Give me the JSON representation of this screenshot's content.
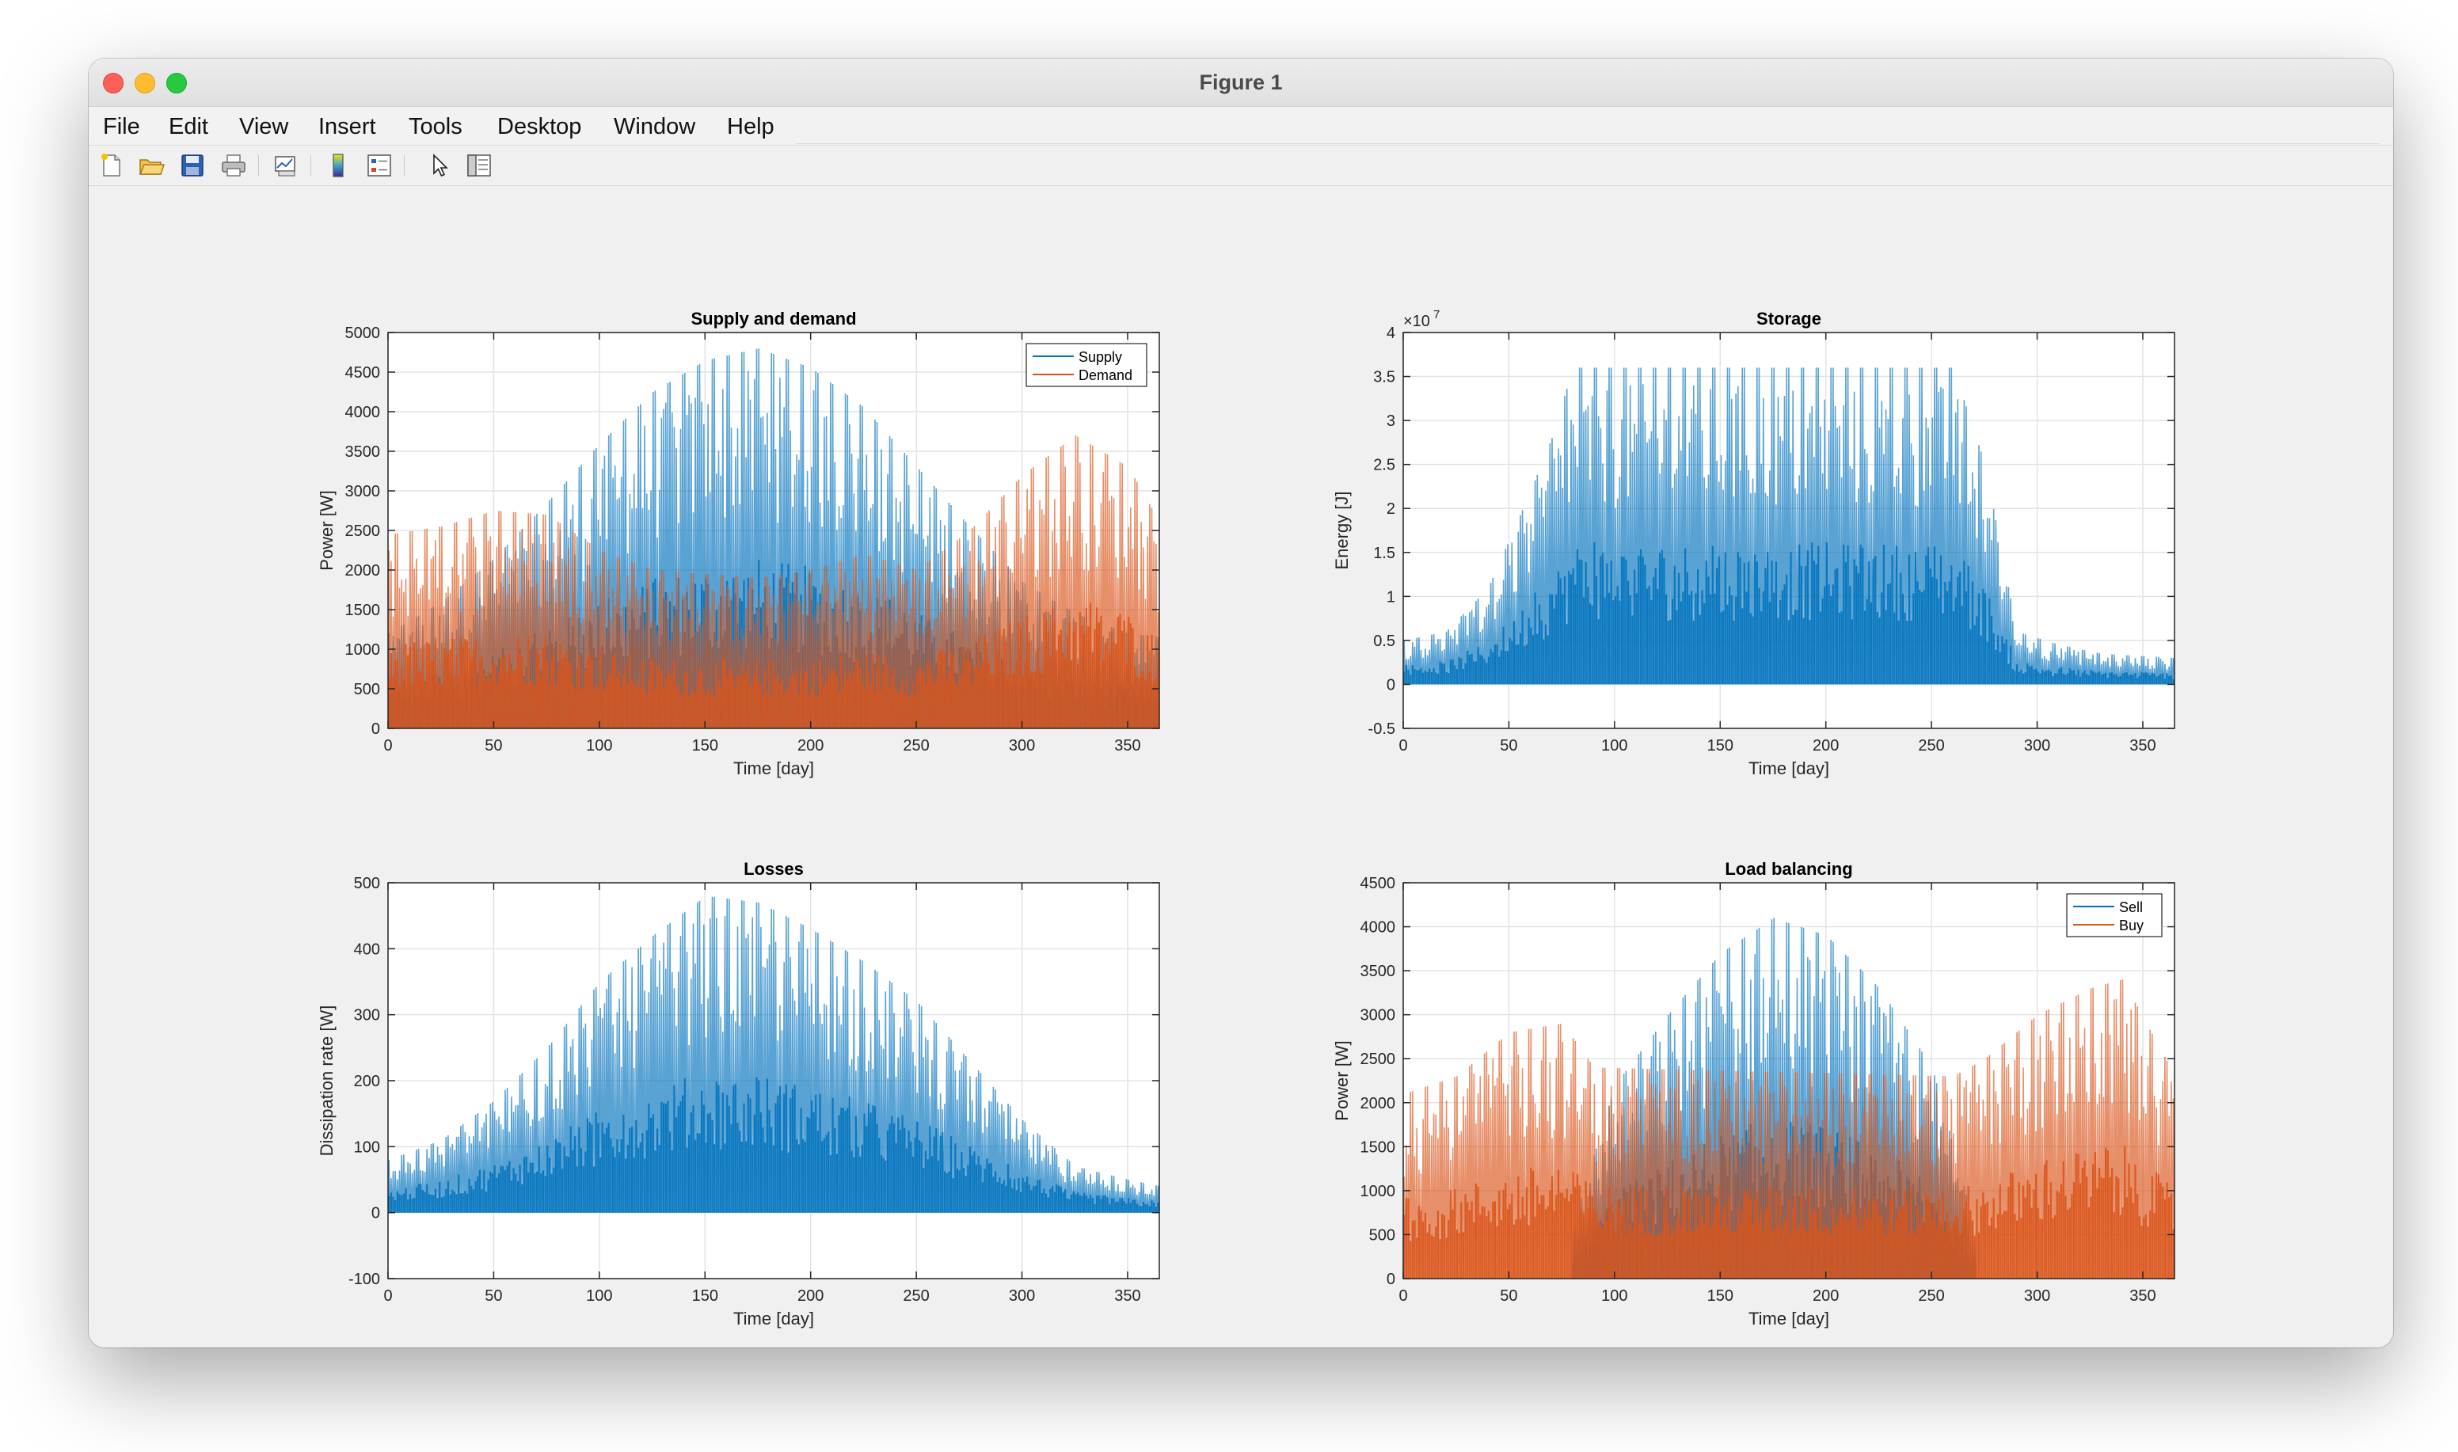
{
  "window": {
    "title": "Figure 1"
  },
  "menu": [
    "File",
    "Edit",
    "View",
    "Insert",
    "Tools",
    "Desktop",
    "Window",
    "Help"
  ],
  "toolbar": [
    {
      "name": "new-figure-icon"
    },
    {
      "name": "open-file-icon"
    },
    {
      "name": "save-icon"
    },
    {
      "name": "print-icon"
    },
    {
      "name": "link-plot-icon"
    },
    {
      "name": "colorbar-icon"
    },
    {
      "name": "legend-icon"
    },
    {
      "name": "pointer-icon"
    },
    {
      "name": "property-inspector-icon"
    }
  ],
  "chart_data": [
    {
      "type": "line",
      "title": "Supply and demand",
      "xlabel": "Time [day]",
      "ylabel": "Power [W]",
      "xlim": [
        0,
        365
      ],
      "ylim": [
        0,
        5000
      ],
      "xticks": [
        0,
        50,
        100,
        150,
        200,
        250,
        300,
        350
      ],
      "yticks": [
        0,
        500,
        1000,
        1500,
        2000,
        2500,
        3000,
        3500,
        4000,
        4500,
        5000
      ],
      "legend_position": "top-right",
      "grid": true,
      "series": [
        {
          "name": "Supply",
          "color": "#0072BD",
          "daily_peak_envelope": {
            "x": [
              0,
              25,
              50,
              75,
              100,
              125,
              150,
              175,
              200,
              225,
              250,
              275,
              300,
              325,
              350,
              365
            ],
            "y": [
              1200,
              1600,
              2150,
              2850,
              3600,
              4250,
              4650,
              4800,
              4550,
              4050,
              3300,
              2550,
              1850,
              1450,
              1200,
              1150
            ]
          }
        },
        {
          "name": "Demand",
          "color": "#D95319",
          "daily_peak_envelope": {
            "x": [
              0,
              25,
              50,
              75,
              100,
              125,
              150,
              175,
              200,
              225,
              250,
              275,
              300,
              325,
              350,
              365
            ],
            "y": [
              2450,
              2550,
              2750,
              2700,
              2250,
              2000,
              1950,
              1900,
              2000,
              2200,
              2000,
              2500,
              3200,
              3700,
              3300,
              2600
            ]
          }
        }
      ]
    },
    {
      "type": "line",
      "title": "Storage",
      "xlabel": "Time [day]",
      "ylabel": "Energy [J]",
      "xlim": [
        0,
        365
      ],
      "ylim": [
        -0.5,
        4
      ],
      "y_exponent": "×10",
      "y_exponent_power": "7",
      "xticks": [
        0,
        50,
        100,
        150,
        200,
        250,
        300,
        350
      ],
      "yticks": [
        -0.5,
        0,
        0.5,
        1,
        1.5,
        2,
        2.5,
        3,
        3.5,
        4
      ],
      "grid": true,
      "series": [
        {
          "color": "#0072BD",
          "daily_peak_envelope": {
            "x": [
              0,
              20,
              40,
              60,
              70,
              80,
              260,
              275,
              290,
              310,
              330,
              365
            ],
            "y": [
              0.5,
              0.6,
              1.1,
              2.2,
              2.8,
              3.6,
              3.6,
              2.5,
              0.6,
              0.45,
              0.35,
              0.3
            ]
          }
        }
      ]
    },
    {
      "type": "line",
      "title": "Losses",
      "xlabel": "Time [day]",
      "ylabel": "Dissipation rate [W]",
      "xlim": [
        0,
        365
      ],
      "ylim": [
        -100,
        500
      ],
      "xticks": [
        0,
        50,
        100,
        150,
        200,
        250,
        300,
        350
      ],
      "yticks": [
        -100,
        0,
        100,
        200,
        300,
        400,
        500
      ],
      "grid": true,
      "series": [
        {
          "color": "#0072BD",
          "daily_peak_envelope": {
            "x": [
              0,
              25,
              50,
              75,
              100,
              125,
              150,
              175,
              200,
              225,
              250,
              275,
              300,
              325,
              350,
              365
            ],
            "y": [
              80,
              110,
              170,
              250,
              350,
              420,
              480,
              470,
              430,
              380,
              320,
              230,
              140,
              70,
              50,
              40
            ]
          }
        }
      ]
    },
    {
      "type": "line",
      "title": "Load balancing",
      "xlabel": "Time [day]",
      "ylabel": "Power [W]",
      "xlim": [
        0,
        365
      ],
      "ylim": [
        0,
        4500
      ],
      "xticks": [
        0,
        50,
        100,
        150,
        200,
        250,
        300,
        350
      ],
      "yticks": [
        0,
        500,
        1000,
        1500,
        2000,
        2500,
        3000,
        3500,
        4000,
        4500
      ],
      "legend_position": "top-right",
      "grid": true,
      "series": [
        {
          "name": "Sell",
          "color": "#0072BD",
          "daily_peak_envelope": {
            "x": [
              80,
              100,
              125,
              150,
              175,
              200,
              225,
              250,
              270
            ],
            "y": [
              600,
              2200,
              3000,
              3700,
              4100,
              3900,
              3300,
              2400,
              600
            ]
          }
        },
        {
          "name": "Buy",
          "color": "#D95319",
          "daily_peak_envelope": {
            "x": [
              0,
              25,
              50,
              75,
              90,
              260,
              275,
              300,
              325,
              340,
              365
            ],
            "y": [
              2100,
              2300,
              2800,
              2900,
              2400,
              2300,
              2500,
              3000,
              3300,
              3400,
              2300
            ]
          }
        }
      ]
    }
  ]
}
